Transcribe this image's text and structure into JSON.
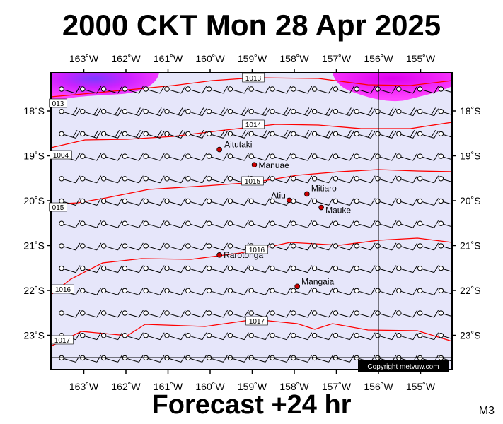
{
  "title": "2000 CKT Mon 28 Apr 2025",
  "forecast_label": "Forecast +24 hr",
  "model_label": "M3",
  "copyright": "Copyright metvuw.com",
  "colors": {
    "background": "#e6e6fa",
    "isobar": "#ff0000",
    "place_marker": "#cc0000",
    "rain_heavy": "#ff00ff",
    "rain_core": "#8040ff"
  },
  "lon_labels": [
    "163˚W",
    "162˚W",
    "161˚W",
    "160˚W",
    "159˚W",
    "158˚W",
    "157˚W",
    "156˚W",
    "155˚W"
  ],
  "lat_labels": [
    "18˚S",
    "19˚S",
    "20˚S",
    "21˚S",
    "22˚S",
    "23˚S"
  ],
  "isobar_labels": [
    "1013",
    "013",
    "1014",
    "1004",
    "1015",
    "015",
    "1016",
    "1016",
    "1017",
    "1017"
  ],
  "places": [
    {
      "name": "Aitutaki",
      "lon": -159.78,
      "lat": -18.86
    },
    {
      "name": "Manuae",
      "lon": -158.95,
      "lat": -19.2
    },
    {
      "name": "Mitiaro",
      "lon": -157.7,
      "lat": -19.85
    },
    {
      "name": "Atiu",
      "lon": -158.12,
      "lat": -19.99
    },
    {
      "name": "Mauke",
      "lon": -157.36,
      "lat": -20.15
    },
    {
      "name": "Rarotonga",
      "lon": -159.78,
      "lat": -21.21
    },
    {
      "name": "Mangaia",
      "lon": -157.93,
      "lat": -21.91
    }
  ]
}
